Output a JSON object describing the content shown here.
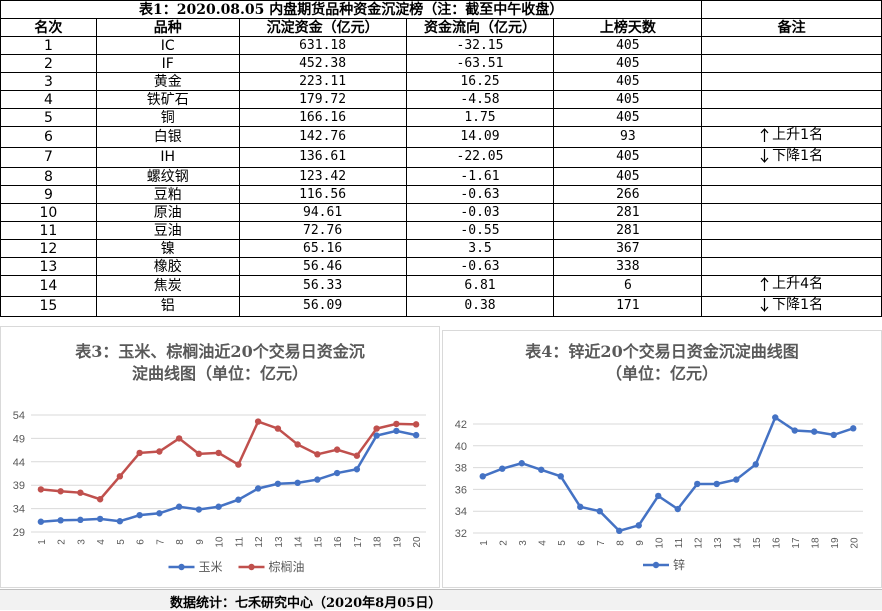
{
  "table": {
    "title": "表1：2020.08.05 内盘期货品种资金沉淀榜（注：截至中午收盘）",
    "headers": [
      "名次",
      "品种",
      "沉淀资金（亿元）",
      "资金流向（亿元）",
      "上榜天数",
      "备注"
    ],
    "rows": [
      {
        "rank": "1",
        "name": "IC",
        "amount": "631.18",
        "flow": "-32.15",
        "days": "405",
        "note": ""
      },
      {
        "rank": "2",
        "name": "IF",
        "amount": "452.38",
        "flow": "-63.51",
        "days": "405",
        "note": ""
      },
      {
        "rank": "3",
        "name": "黄金",
        "amount": "223.11",
        "flow": "16.25",
        "days": "405",
        "note": ""
      },
      {
        "rank": "4",
        "name": "铁矿石",
        "amount": "179.72",
        "flow": "-4.58",
        "days": "405",
        "note": ""
      },
      {
        "rank": "5",
        "name": "铜",
        "amount": "166.16",
        "flow": "1.75",
        "days": "405",
        "note": ""
      },
      {
        "rank": "6",
        "name": "白银",
        "amount": "142.76",
        "flow": "14.09",
        "days": "93",
        "note": "上升1名",
        "dir": "up"
      },
      {
        "rank": "7",
        "name": "IH",
        "amount": "136.61",
        "flow": "-22.05",
        "days": "405",
        "note": "下降1名",
        "dir": "down"
      },
      {
        "rank": "8",
        "name": "螺纹钢",
        "amount": "123.42",
        "flow": "-1.61",
        "days": "405",
        "note": ""
      },
      {
        "rank": "9",
        "name": "豆粕",
        "amount": "116.56",
        "flow": "-0.63",
        "days": "266",
        "note": ""
      },
      {
        "rank": "10",
        "name": "原油",
        "amount": "94.61",
        "flow": "-0.03",
        "days": "281",
        "note": ""
      },
      {
        "rank": "11",
        "name": "豆油",
        "amount": "72.76",
        "flow": "-0.55",
        "days": "281",
        "note": ""
      },
      {
        "rank": "12",
        "name": "镍",
        "amount": "65.16",
        "flow": "3.5",
        "days": "367",
        "note": ""
      },
      {
        "rank": "13",
        "name": "橡胶",
        "amount": "56.46",
        "flow": "-0.63",
        "days": "338",
        "note": ""
      },
      {
        "rank": "14",
        "name": "焦炭",
        "amount": "56.33",
        "flow": "6.81",
        "days": "6",
        "note": "上升4名",
        "dir": "up"
      },
      {
        "rank": "15",
        "name": "铝",
        "amount": "56.09",
        "flow": "0.38",
        "days": "171",
        "note": "下降1名",
        "dir": "down"
      }
    ]
  },
  "chart_data": [
    {
      "type": "line",
      "title": "表3：玉米、棕榈油近20个交易日资金沉淀曲线图（单位：亿元）",
      "x": [
        1,
        2,
        3,
        4,
        5,
        6,
        7,
        8,
        9,
        10,
        11,
        12,
        13,
        14,
        15,
        16,
        17,
        18,
        19,
        20
      ],
      "ylim": [
        29,
        54
      ],
      "yticks": [
        29,
        34,
        39,
        44,
        49,
        54
      ],
      "grid": true,
      "legend": "bottom",
      "series": [
        {
          "name": "玉米",
          "color": "#4472c4",
          "values": [
            31.2,
            31.5,
            31.6,
            31.8,
            31.3,
            32.6,
            33.0,
            34.4,
            33.8,
            34.4,
            35.9,
            38.3,
            39.3,
            39.5,
            40.2,
            41.6,
            42.4,
            49.6,
            50.6,
            49.7
          ]
        },
        {
          "name": "棕榈油",
          "color": "#c0504d",
          "values": [
            38.1,
            37.7,
            37.4,
            36.0,
            40.9,
            45.9,
            46.2,
            49.0,
            45.7,
            45.9,
            43.4,
            52.6,
            51.1,
            47.7,
            45.6,
            46.6,
            45.3,
            51.1,
            52.1,
            52.0
          ]
        }
      ]
    },
    {
      "type": "line",
      "title": "表4：锌近20个交易日资金沉淀曲线图（单位：亿元）",
      "x": [
        1,
        2,
        3,
        4,
        5,
        6,
        7,
        8,
        9,
        10,
        11,
        12,
        13,
        14,
        15,
        16,
        17,
        18,
        19,
        20
      ],
      "ylim": [
        32,
        42
      ],
      "yticks": [
        32,
        34,
        36,
        38,
        40,
        42
      ],
      "grid": true,
      "legend": "bottom",
      "series": [
        {
          "name": "锌",
          "color": "#4472c4",
          "values": [
            37.2,
            37.9,
            38.4,
            37.8,
            37.2,
            34.4,
            34.0,
            32.2,
            32.7,
            35.4,
            34.2,
            36.5,
            36.5,
            36.9,
            38.3,
            42.6,
            41.4,
            41.3,
            41.0,
            41.6
          ]
        }
      ]
    }
  ],
  "charts_text": {
    "c1_title_line1": "表3：玉米、棕榈油近20个交易日资金沉",
    "c1_title_line2": "淀曲线图（单位：亿元）",
    "c2_title_line1": "表4：锌近20个交易日资金沉淀曲线图",
    "c2_title_line2": "（单位：亿元）"
  },
  "footer": "数据统计：七禾研究中心（2020年8月05日）"
}
